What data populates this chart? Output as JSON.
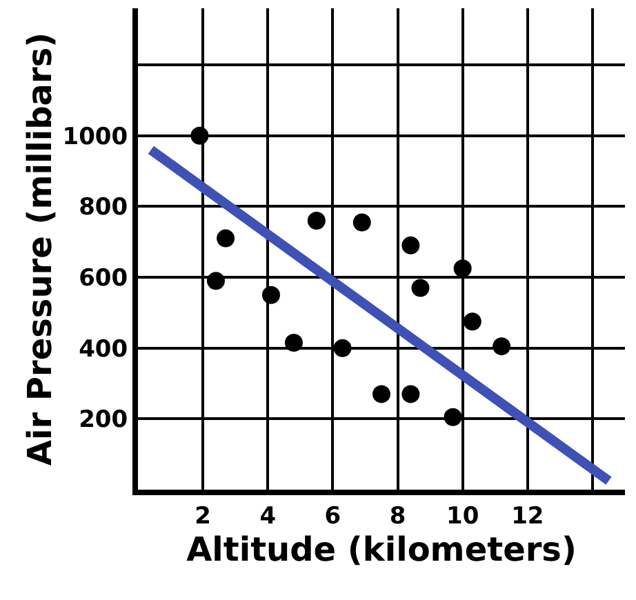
{
  "chart_data": {
    "type": "scatter",
    "xlabel": "Altitude (kilometers)",
    "ylabel": "Air Pressure (millibars)",
    "xlim": [
      0,
      15
    ],
    "ylim": [
      0,
      1360
    ],
    "xticks": [
      2,
      4,
      6,
      8,
      10,
      12,
      {
        "value": 14,
        "label": null
      }
    ],
    "yticks": [
      200,
      400,
      600,
      800,
      1000,
      {
        "value": 1200,
        "label": null
      }
    ],
    "grid": true,
    "series": [
      {
        "marker": "circle",
        "color": "#000000",
        "x": [
          1.9,
          2.7,
          2.4,
          4.1,
          4.8,
          5.5,
          6.3,
          6.9,
          7.5,
          8.4,
          8.4,
          8.7,
          10,
          9.7,
          10.3,
          11.2
        ],
        "values": [
          1000,
          710,
          590,
          550,
          415,
          760,
          400,
          755,
          270,
          270,
          690,
          570,
          625,
          205,
          475,
          405
        ]
      },
      {
        "type": "line",
        "marker": "none",
        "color": "#3f51b5",
        "x": [
          0.4,
          14.5
        ],
        "values": [
          960,
          25
        ]
      }
    ]
  }
}
